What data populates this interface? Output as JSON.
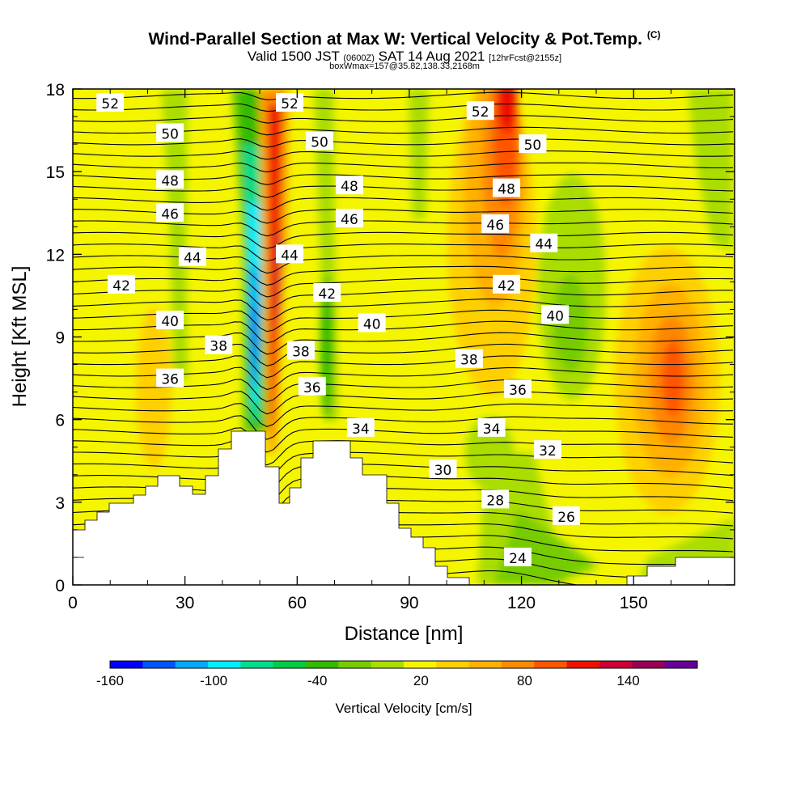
{
  "chart_data": {
    "type": "heatmap",
    "title_main": "Wind-Parallel Section at Max W: Vertical Velocity & Pot.Temp.",
    "title_mark": "(C)",
    "subtitle_a": "Valid 1500 JST",
    "subtitle_b": "(0600Z)",
    "subtitle_c": "SAT 14 Aug 2021",
    "subtitle_d": "[12hrFcst@2155z]",
    "subtitle2": "boxWmax=157@35.82,138.33,2168m",
    "xlabel": "Distance [nm]",
    "ylabel": "Height [Kft MSL]",
    "xlim": [
      0,
      177
    ],
    "ylim": [
      0,
      18
    ],
    "x_ticks": [
      0,
      30,
      60,
      90,
      120,
      150
    ],
    "y_ticks": [
      0,
      3,
      6,
      9,
      12,
      15,
      18
    ],
    "colorbar": {
      "label": "Vertical Velocity [cm/s]",
      "tick_labels": [
        "-160",
        "-100",
        "-40",
        "20",
        "80",
        "140"
      ],
      "tick_values": [
        -160,
        -100,
        -40,
        20,
        80,
        140
      ],
      "range": [
        -160,
        180
      ],
      "colors": [
        "#0000ff",
        "#0055ff",
        "#00aaff",
        "#00eeff",
        "#00dd88",
        "#00cc44",
        "#33bb00",
        "#77cc00",
        "#aadd00",
        "#f5f500",
        "#ffd000",
        "#ffb000",
        "#ff8800",
        "#ff5500",
        "#ee1100",
        "#cc0033",
        "#990055",
        "#660099"
      ]
    },
    "contour_labels": [
      {
        "text": "52",
        "x": 10,
        "y": 17.5
      },
      {
        "text": "50",
        "x": 26,
        "y": 16.4
      },
      {
        "text": "48",
        "x": 26,
        "y": 14.7
      },
      {
        "text": "46",
        "x": 26,
        "y": 13.5
      },
      {
        "text": "44",
        "x": 32,
        "y": 11.9
      },
      {
        "text": "42",
        "x": 13,
        "y": 10.9
      },
      {
        "text": "40",
        "x": 26,
        "y": 9.6
      },
      {
        "text": "38",
        "x": 39,
        "y": 8.7
      },
      {
        "text": "36",
        "x": 26,
        "y": 7.5
      },
      {
        "text": "52",
        "x": 58,
        "y": 17.5
      },
      {
        "text": "50",
        "x": 66,
        "y": 16.1
      },
      {
        "text": "48",
        "x": 74,
        "y": 14.5
      },
      {
        "text": "46",
        "x": 74,
        "y": 13.3
      },
      {
        "text": "44",
        "x": 58,
        "y": 12.0
      },
      {
        "text": "42",
        "x": 68,
        "y": 10.6
      },
      {
        "text": "40",
        "x": 80,
        "y": 9.5
      },
      {
        "text": "38",
        "x": 61,
        "y": 8.5
      },
      {
        "text": "36",
        "x": 64,
        "y": 7.2
      },
      {
        "text": "34",
        "x": 77,
        "y": 5.7
      },
      {
        "text": "52",
        "x": 109,
        "y": 17.2
      },
      {
        "text": "50",
        "x": 123,
        "y": 16.0
      },
      {
        "text": "48",
        "x": 116,
        "y": 14.4
      },
      {
        "text": "46",
        "x": 113,
        "y": 13.1
      },
      {
        "text": "44",
        "x": 126,
        "y": 12.4
      },
      {
        "text": "42",
        "x": 116,
        "y": 10.9
      },
      {
        "text": "40",
        "x": 129,
        "y": 9.8
      },
      {
        "text": "38",
        "x": 106,
        "y": 8.2
      },
      {
        "text": "36",
        "x": 119,
        "y": 7.1
      },
      {
        "text": "34",
        "x": 112,
        "y": 5.7
      },
      {
        "text": "32",
        "x": 127,
        "y": 4.9
      },
      {
        "text": "30",
        "x": 99,
        "y": 4.2
      },
      {
        "text": "28",
        "x": 113,
        "y": 3.1
      },
      {
        "text": "26",
        "x": 132,
        "y": 2.5
      },
      {
        "text": "24",
        "x": 119,
        "y": 1.0
      }
    ]
  }
}
